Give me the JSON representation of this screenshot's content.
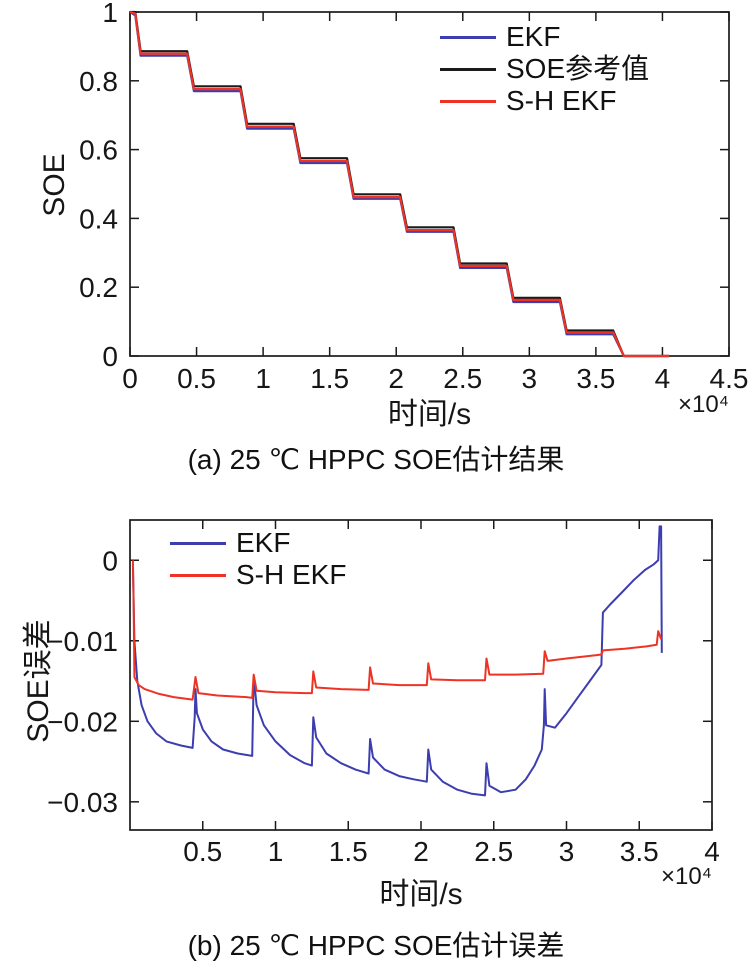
{
  "chart_data": [
    {
      "id": "a",
      "type": "line",
      "title": "",
      "xlabel": "时间/s",
      "ylabel": "SOE",
      "x_multiplier": "×10⁴",
      "caption": "(a) 25 ℃ HPPC SOE估计结果",
      "xlim": [
        0,
        4.5
      ],
      "ylim": [
        0,
        1
      ],
      "xticks": [
        0,
        0.5,
        1,
        1.5,
        2,
        2.5,
        3,
        3.5,
        4,
        4.5
      ],
      "xtick_labels": [
        "0",
        "0.5",
        "1",
        "1.5",
        "2",
        "2.5",
        "3",
        "3.5",
        "4",
        "4.5"
      ],
      "yticks": [
        0,
        0.2,
        0.4,
        0.6,
        0.8,
        1
      ],
      "ytick_labels": [
        "0",
        "0.2",
        "0.4",
        "0.6",
        "0.8",
        "1"
      ],
      "legend_position": "top-right",
      "grid": false,
      "series": [
        {
          "name": "EKF",
          "color": "#3d3db0",
          "points": [
            [
              0,
              1
            ],
            [
              0.04,
              0.99
            ],
            [
              0.08,
              0.873
            ],
            [
              0.43,
              0.873
            ],
            [
              0.48,
              0.77
            ],
            [
              0.83,
              0.77
            ],
            [
              0.88,
              0.661
            ],
            [
              1.23,
              0.661
            ],
            [
              1.28,
              0.561
            ],
            [
              1.63,
              0.561
            ],
            [
              1.68,
              0.457
            ],
            [
              2.03,
              0.457
            ],
            [
              2.08,
              0.361
            ],
            [
              2.43,
              0.361
            ],
            [
              2.48,
              0.256
            ],
            [
              2.83,
              0.256
            ],
            [
              2.88,
              0.157
            ],
            [
              3.23,
              0.157
            ],
            [
              3.28,
              0.063
            ],
            [
              3.63,
              0.063
            ],
            [
              3.71,
              0
            ],
            [
              4.05,
              0
            ]
          ]
        },
        {
          "name": "SOE参考值",
          "color": "#1b1b1b",
          "points": [
            [
              0,
              1
            ],
            [
              0.04,
              1
            ],
            [
              0.08,
              0.886
            ],
            [
              0.43,
              0.886
            ],
            [
              0.48,
              0.784
            ],
            [
              0.83,
              0.784
            ],
            [
              0.88,
              0.675
            ],
            [
              1.23,
              0.675
            ],
            [
              1.28,
              0.575
            ],
            [
              1.63,
              0.575
            ],
            [
              1.68,
              0.47
            ],
            [
              2.03,
              0.47
            ],
            [
              2.08,
              0.374
            ],
            [
              2.43,
              0.374
            ],
            [
              2.48,
              0.269
            ],
            [
              2.83,
              0.269
            ],
            [
              2.88,
              0.169
            ],
            [
              3.23,
              0.169
            ],
            [
              3.28,
              0.074
            ],
            [
              3.63,
              0.074
            ],
            [
              3.71,
              0
            ],
            [
              4.05,
              0
            ]
          ]
        },
        {
          "name": "S-H EKF",
          "color": "#ee3324",
          "points": [
            [
              0,
              1
            ],
            [
              0.04,
              0.995
            ],
            [
              0.08,
              0.879
            ],
            [
              0.43,
              0.879
            ],
            [
              0.48,
              0.776
            ],
            [
              0.83,
              0.776
            ],
            [
              0.88,
              0.667
            ],
            [
              1.23,
              0.667
            ],
            [
              1.28,
              0.567
            ],
            [
              1.63,
              0.567
            ],
            [
              1.68,
              0.462
            ],
            [
              2.03,
              0.462
            ],
            [
              2.08,
              0.366
            ],
            [
              2.43,
              0.366
            ],
            [
              2.48,
              0.262
            ],
            [
              2.83,
              0.262
            ],
            [
              2.88,
              0.163
            ],
            [
              3.23,
              0.163
            ],
            [
              3.28,
              0.069
            ],
            [
              3.63,
              0.069
            ],
            [
              3.71,
              0
            ],
            [
              4.05,
              0
            ]
          ]
        }
      ]
    },
    {
      "id": "b",
      "type": "line",
      "title": "",
      "xlabel": "时间/s",
      "ylabel": "SOE误差",
      "x_multiplier": "×10⁴",
      "caption": "(b) 25 ℃ HPPC SOE估计误差",
      "xlim": [
        0,
        4
      ],
      "ylim": [
        -0.0335,
        0.005
      ],
      "xticks": [
        0.5,
        1,
        1.5,
        2,
        2.5,
        3,
        3.5,
        4
      ],
      "xtick_labels": [
        "0.5",
        "1",
        "1.5",
        "2",
        "2.5",
        "3",
        "3.5",
        "4"
      ],
      "yticks": [
        0,
        -0.01,
        -0.02,
        -0.03
      ],
      "ytick_labels": [
        "0",
        "−0.01",
        "−0.02",
        "−0.03"
      ],
      "legend_position": "top-left",
      "grid": false,
      "series": [
        {
          "name": "EKF",
          "color": "#3d3db0",
          "points": [
            [
              0.02,
              -0.0005
            ],
            [
              0.03,
              -0.01
            ],
            [
              0.05,
              -0.015
            ],
            [
              0.08,
              -0.018
            ],
            [
              0.12,
              -0.02
            ],
            [
              0.18,
              -0.0215
            ],
            [
              0.25,
              -0.0225
            ],
            [
              0.35,
              -0.023
            ],
            [
              0.43,
              -0.0233
            ],
            [
              0.445,
              -0.0195
            ],
            [
              0.45,
              -0.016
            ],
            [
              0.46,
              -0.019
            ],
            [
              0.5,
              -0.021
            ],
            [
              0.56,
              -0.0225
            ],
            [
              0.64,
              -0.0235
            ],
            [
              0.74,
              -0.024
            ],
            [
              0.84,
              -0.0243
            ],
            [
              0.85,
              -0.0145
            ],
            [
              0.87,
              -0.018
            ],
            [
              0.92,
              -0.0205
            ],
            [
              1.0,
              -0.0225
            ],
            [
              1.1,
              -0.0242
            ],
            [
              1.2,
              -0.0252
            ],
            [
              1.25,
              -0.0255
            ],
            [
              1.26,
              -0.0195
            ],
            [
              1.28,
              -0.022
            ],
            [
              1.35,
              -0.024
            ],
            [
              1.45,
              -0.0252
            ],
            [
              1.55,
              -0.026
            ],
            [
              1.64,
              -0.0265
            ],
            [
              1.65,
              -0.0222
            ],
            [
              1.67,
              -0.0245
            ],
            [
              1.75,
              -0.026
            ],
            [
              1.85,
              -0.0268
            ],
            [
              1.95,
              -0.0272
            ],
            [
              2.04,
              -0.0275
            ],
            [
              2.05,
              -0.0235
            ],
            [
              2.07,
              -0.026
            ],
            [
              2.15,
              -0.0275
            ],
            [
              2.25,
              -0.0285
            ],
            [
              2.35,
              -0.029
            ],
            [
              2.44,
              -0.0292
            ],
            [
              2.45,
              -0.0252
            ],
            [
              2.47,
              -0.028
            ],
            [
              2.55,
              -0.0288
            ],
            [
              2.65,
              -0.0285
            ],
            [
              2.72,
              -0.0272
            ],
            [
              2.78,
              -0.0255
            ],
            [
              2.83,
              -0.0235
            ],
            [
              2.845,
              -0.0205
            ],
            [
              2.85,
              -0.016
            ],
            [
              2.86,
              -0.0205
            ],
            [
              2.92,
              -0.0208
            ],
            [
              3.0,
              -0.019
            ],
            [
              3.08,
              -0.017
            ],
            [
              3.16,
              -0.015
            ],
            [
              3.24,
              -0.013
            ],
            [
              3.25,
              -0.0065
            ],
            [
              3.3,
              -0.0055
            ],
            [
              3.38,
              -0.004
            ],
            [
              3.46,
              -0.0025
            ],
            [
              3.54,
              -0.0012
            ],
            [
              3.6,
              -0.0005
            ],
            [
              3.63,
              0.0
            ],
            [
              3.64,
              0.0042
            ],
            [
              3.65,
              0.0042
            ],
            [
              3.655,
              -0.0115
            ]
          ]
        },
        {
          "name": "S-H EKF",
          "color": "#ee3324",
          "points": [
            [
              0.02,
              0.0
            ],
            [
              0.025,
              -0.005
            ],
            [
              0.03,
              -0.0145
            ],
            [
              0.06,
              -0.0155
            ],
            [
              0.1,
              -0.016
            ],
            [
              0.2,
              -0.0166
            ],
            [
              0.3,
              -0.017
            ],
            [
              0.43,
              -0.0173
            ],
            [
              0.45,
              -0.0145
            ],
            [
              0.47,
              -0.0165
            ],
            [
              0.6,
              -0.0168
            ],
            [
              0.8,
              -0.017
            ],
            [
              0.84,
              -0.0171
            ],
            [
              0.85,
              -0.0142
            ],
            [
              0.87,
              -0.0162
            ],
            [
              1.0,
              -0.0164
            ],
            [
              1.2,
              -0.0165
            ],
            [
              1.25,
              -0.0165
            ],
            [
              1.26,
              -0.0138
            ],
            [
              1.28,
              -0.0158
            ],
            [
              1.45,
              -0.016
            ],
            [
              1.64,
              -0.0161
            ],
            [
              1.65,
              -0.0133
            ],
            [
              1.67,
              -0.0153
            ],
            [
              1.85,
              -0.0155
            ],
            [
              2.04,
              -0.0155
            ],
            [
              2.05,
              -0.0128
            ],
            [
              2.07,
              -0.0148
            ],
            [
              2.25,
              -0.0149
            ],
            [
              2.44,
              -0.0149
            ],
            [
              2.45,
              -0.0122
            ],
            [
              2.47,
              -0.0142
            ],
            [
              2.65,
              -0.0142
            ],
            [
              2.84,
              -0.0141
            ],
            [
              2.85,
              -0.0113
            ],
            [
              2.87,
              -0.0125
            ],
            [
              3.0,
              -0.0122
            ],
            [
              3.2,
              -0.0118
            ],
            [
              3.24,
              -0.0117
            ],
            [
              3.25,
              -0.0112
            ],
            [
              3.4,
              -0.011
            ],
            [
              3.55,
              -0.0107
            ],
            [
              3.62,
              -0.0105
            ],
            [
              3.63,
              -0.0088
            ],
            [
              3.65,
              -0.0098
            ]
          ]
        }
      ]
    }
  ]
}
